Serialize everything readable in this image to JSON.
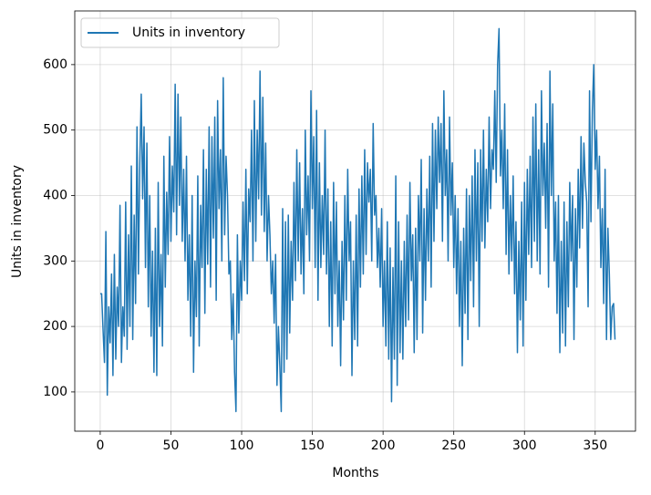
{
  "chart_data": {
    "type": "line",
    "xlabel": "Months",
    "ylabel": "Units in inventory",
    "x": [
      0,
      1,
      2,
      3,
      4,
      5,
      6,
      7,
      8,
      9,
      10,
      11,
      12,
      13,
      14,
      15,
      16,
      17,
      18,
      19,
      20,
      21,
      22,
      23,
      24,
      25,
      26,
      27,
      28,
      29,
      30,
      31,
      32,
      33,
      34,
      35,
      36,
      37,
      38,
      39,
      40,
      41,
      42,
      43,
      44,
      45,
      46,
      47,
      48,
      49,
      50,
      51,
      52,
      53,
      54,
      55,
      56,
      57,
      58,
      59,
      60,
      61,
      62,
      63,
      64,
      65,
      66,
      67,
      68,
      69,
      70,
      71,
      72,
      73,
      74,
      75,
      76,
      77,
      78,
      79,
      80,
      81,
      82,
      83,
      84,
      85,
      86,
      87,
      88,
      89,
      90,
      91,
      92,
      93,
      94,
      95,
      96,
      97,
      98,
      99,
      100,
      101,
      102,
      103,
      104,
      105,
      106,
      107,
      108,
      109,
      110,
      111,
      112,
      113,
      114,
      115,
      116,
      117,
      118,
      119,
      120,
      121,
      122,
      123,
      124,
      125,
      126,
      127,
      128,
      129,
      130,
      131,
      132,
      133,
      134,
      135,
      136,
      137,
      138,
      139,
      140,
      141,
      142,
      143,
      144,
      145,
      146,
      147,
      148,
      149,
      150,
      151,
      152,
      153,
      154,
      155,
      156,
      157,
      158,
      159,
      160,
      161,
      162,
      163,
      164,
      165,
      166,
      167,
      168,
      169,
      170,
      171,
      172,
      173,
      174,
      175,
      176,
      177,
      178,
      179,
      180,
      181,
      182,
      183,
      184,
      185,
      186,
      187,
      188,
      189,
      190,
      191,
      192,
      193,
      194,
      195,
      196,
      197,
      198,
      199,
      200,
      201,
      202,
      203,
      204,
      205,
      206,
      207,
      208,
      209,
      210,
      211,
      212,
      213,
      214,
      215,
      216,
      217,
      218,
      219,
      220,
      221,
      222,
      223,
      224,
      225,
      226,
      227,
      228,
      229,
      230,
      231,
      232,
      233,
      234,
      235,
      236,
      237,
      238,
      239,
      240,
      241,
      242,
      243,
      244,
      245,
      246,
      247,
      248,
      249,
      250,
      251,
      252,
      253,
      254,
      255,
      256,
      257,
      258,
      259,
      260,
      261,
      262,
      263,
      264,
      265,
      266,
      267,
      268,
      269,
      270,
      271,
      272,
      273,
      274,
      275,
      276,
      277,
      278,
      279,
      280,
      281,
      282,
      283,
      284,
      285,
      286,
      287,
      288,
      289,
      290,
      291,
      292,
      293,
      294,
      295,
      296,
      297,
      298,
      299,
      300,
      301,
      302,
      303,
      304,
      305,
      306,
      307,
      308,
      309,
      310,
      311,
      312,
      313,
      314,
      315,
      316,
      317,
      318,
      319,
      320,
      321,
      322,
      323,
      324,
      325,
      326,
      327,
      328,
      329,
      330,
      331,
      332,
      333,
      334,
      335,
      336,
      337,
      338,
      339,
      340,
      341,
      342,
      343,
      344,
      345,
      346,
      347,
      348,
      349,
      350,
      351,
      352,
      353,
      354,
      355,
      356,
      357,
      358,
      359,
      360,
      361,
      362,
      363,
      364
    ],
    "series": [
      {
        "name": "Units in inventory",
        "color": "#1f77b4",
        "values": [
          250,
          250,
          195,
          145,
          345,
          95,
          230,
          175,
          280,
          125,
          310,
          150,
          260,
          200,
          385,
          145,
          230,
          185,
          390,
          165,
          340,
          200,
          445,
          180,
          370,
          235,
          505,
          280,
          450,
          555,
          395,
          505,
          290,
          480,
          230,
          400,
          185,
          315,
          130,
          350,
          125,
          420,
          200,
          310,
          170,
          460,
          260,
          405,
          310,
          490,
          330,
          445,
          375,
          570,
          340,
          555,
          385,
          520,
          330,
          440,
          300,
          460,
          240,
          340,
          185,
          400,
          130,
          300,
          215,
          430,
          170,
          385,
          290,
          470,
          220,
          440,
          295,
          505,
          260,
          490,
          335,
          520,
          240,
          545,
          380,
          470,
          300,
          580,
          340,
          460,
          400,
          280,
          300,
          180,
          250,
          130,
          70,
          340,
          190,
          300,
          240,
          390,
          270,
          440,
          250,
          410,
          360,
          500,
          300,
          545,
          330,
          500,
          395,
          590,
          370,
          550,
          345,
          480,
          300,
          400,
          340,
          250,
          300,
          205,
          310,
          110,
          200,
          140,
          70,
          380,
          130,
          360,
          150,
          370,
          190,
          330,
          240,
          420,
          270,
          470,
          300,
          450,
          280,
          380,
          250,
          500,
          340,
          430,
          300,
          560,
          380,
          490,
          290,
          530,
          240,
          450,
          290,
          400,
          310,
          500,
          280,
          410,
          200,
          360,
          170,
          420,
          250,
          390,
          200,
          300,
          140,
          330,
          210,
          400,
          240,
          440,
          300,
          360,
          125,
          300,
          180,
          370,
          170,
          410,
          260,
          430,
          280,
          470,
          310,
          450,
          390,
          440,
          300,
          510,
          370,
          400,
          290,
          350,
          260,
          380,
          200,
          300,
          170,
          360,
          150,
          320,
          85,
          290,
          150,
          430,
          110,
          360,
          160,
          300,
          150,
          330,
          200,
          370,
          210,
          420,
          270,
          340,
          160,
          350,
          180,
          400,
          300,
          455,
          190,
          380,
          240,
          410,
          300,
          460,
          260,
          510,
          330,
          500,
          380,
          520,
          420,
          510,
          330,
          560,
          400,
          470,
          300,
          520,
          370,
          450,
          290,
          400,
          250,
          380,
          200,
          330,
          140,
          350,
          220,
          410,
          180,
          400,
          270,
          430,
          230,
          470,
          300,
          450,
          200,
          470,
          330,
          500,
          320,
          440,
          360,
          520,
          380,
          470,
          440,
          560,
          420,
          600,
          655,
          430,
          500,
          380,
          540,
          310,
          470,
          280,
          400,
          300,
          430,
          250,
          360,
          160,
          330,
          210,
          390,
          170,
          420,
          240,
          440,
          310,
          460,
          290,
          520,
          330,
          540,
          300,
          470,
          280,
          560,
          400,
          480,
          350,
          510,
          260,
          590,
          400,
          540,
          300,
          390,
          220,
          400,
          160,
          330,
          190,
          390,
          170,
          360,
          230,
          420,
          300,
          400,
          180,
          380,
          260,
          440,
          320,
          490,
          350,
          480,
          420,
          390,
          230,
          560,
          360,
          530,
          600,
          440,
          500,
          380,
          460,
          290,
          380,
          235,
          440,
          180,
          350,
          280,
          180,
          230,
          235,
          180
        ]
      }
    ],
    "xlim": [
      -18,
      378.5
    ],
    "ylim": [
      40,
      682
    ],
    "xticks": [
      0,
      50,
      100,
      150,
      200,
      250,
      300,
      350
    ],
    "yticks": [
      100,
      200,
      300,
      400,
      500,
      600
    ],
    "grid": true,
    "legend": "upper-left"
  }
}
